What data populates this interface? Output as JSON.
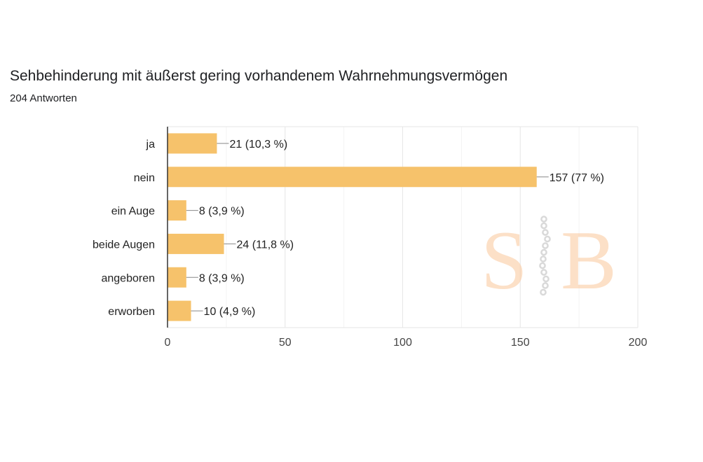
{
  "title": "Sehbehinderung mit äußerst gering vorhandenem Wahrnehmungsvermögen",
  "subtitle": "204 Antworten",
  "watermark": "SB",
  "chart_data": {
    "type": "bar",
    "orientation": "horizontal",
    "title": "Sehbehinderung mit äußerst gering vorhandenem Wahrnehmungsvermögen",
    "categories": [
      "ja",
      "nein",
      "ein Auge",
      "beide Augen",
      "angeboren",
      "erworben"
    ],
    "values": [
      21,
      157,
      8,
      24,
      8,
      10
    ],
    "data_labels": [
      "21 (10,3 %)",
      "157 (77 %)",
      "8 (3,9 %)",
      "24 (11,8 %)",
      "8 (3,9 %)",
      "10 (4,9 %)"
    ],
    "xlim": [
      0,
      200
    ],
    "xticks": [
      0,
      50,
      100,
      150,
      200
    ],
    "minor_grid": [
      25,
      75,
      125,
      175
    ],
    "grid": true,
    "bar_color": "#f6c26b",
    "xlabel": "",
    "ylabel": ""
  }
}
